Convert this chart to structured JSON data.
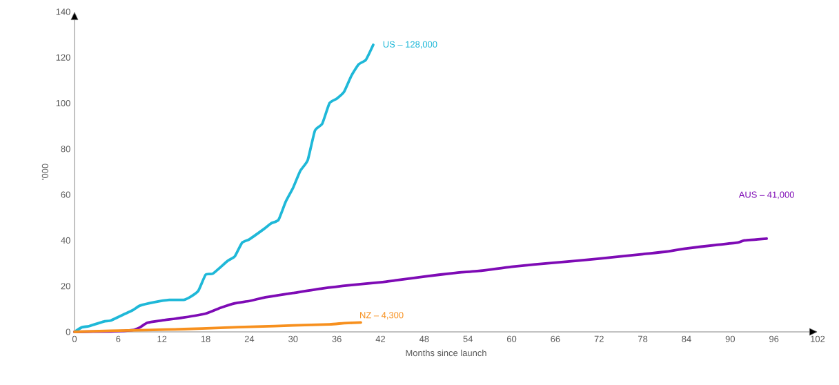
{
  "chart_data": {
    "type": "line",
    "xlabel": "Months since launch",
    "ylabel": "'000",
    "xlim": [
      0,
      102
    ],
    "ylim": [
      0,
      140
    ],
    "xticks": [
      0,
      6,
      12,
      18,
      24,
      30,
      36,
      42,
      48,
      54,
      60,
      66,
      72,
      78,
      84,
      90,
      96,
      102
    ],
    "yticks": [
      0,
      20,
      40,
      60,
      80,
      100,
      120,
      140
    ],
    "series": [
      {
        "name": "US – 128,000",
        "color": "#1fb8d8",
        "x": [
          0,
          1,
          2,
          4,
          5,
          7,
          8,
          9,
          11,
          13,
          15,
          16,
          17,
          18,
          19,
          21,
          22,
          23,
          24,
          26,
          27,
          28,
          29,
          30,
          31,
          32,
          33,
          34,
          35,
          36,
          37,
          38,
          39,
          40,
          41
        ],
        "values": [
          0,
          2,
          2.5,
          4.5,
          5,
          8,
          9.5,
          11.5,
          13,
          14,
          14,
          15.5,
          18,
          25,
          25.5,
          31,
          33,
          39,
          40.5,
          45,
          47.5,
          49,
          57,
          63,
          70.5,
          75,
          88,
          91,
          100,
          102,
          105,
          112,
          117,
          119,
          125.5
        ]
      },
      {
        "name": "AUS – 41,000",
        "color": "#7e0bb5",
        "x": [
          0,
          5,
          8,
          9,
          10,
          12,
          15,
          18,
          20,
          22,
          24,
          26,
          28,
          30,
          34,
          38,
          42,
          44,
          48,
          52,
          56,
          60,
          66,
          72,
          78,
          81,
          84,
          88,
          91,
          92,
          95
        ],
        "values": [
          0,
          0.2,
          0.8,
          2,
          4,
          5,
          6.3,
          8,
          10.5,
          12.5,
          13.5,
          15,
          16,
          17,
          19,
          20.5,
          21.7,
          22.5,
          24.2,
          25.7,
          26.8,
          28.5,
          30.3,
          32,
          34,
          35,
          36.5,
          38,
          39,
          40,
          40.8
        ]
      },
      {
        "name": "NZ – 4,300",
        "color": "#f7901e",
        "x": [
          0,
          5,
          10,
          15,
          20,
          25,
          30,
          35,
          37,
          39.3
        ],
        "values": [
          0,
          0.5,
          0.8,
          1.2,
          1.8,
          2.3,
          2.8,
          3.3,
          3.8,
          4.1
        ]
      }
    ]
  }
}
